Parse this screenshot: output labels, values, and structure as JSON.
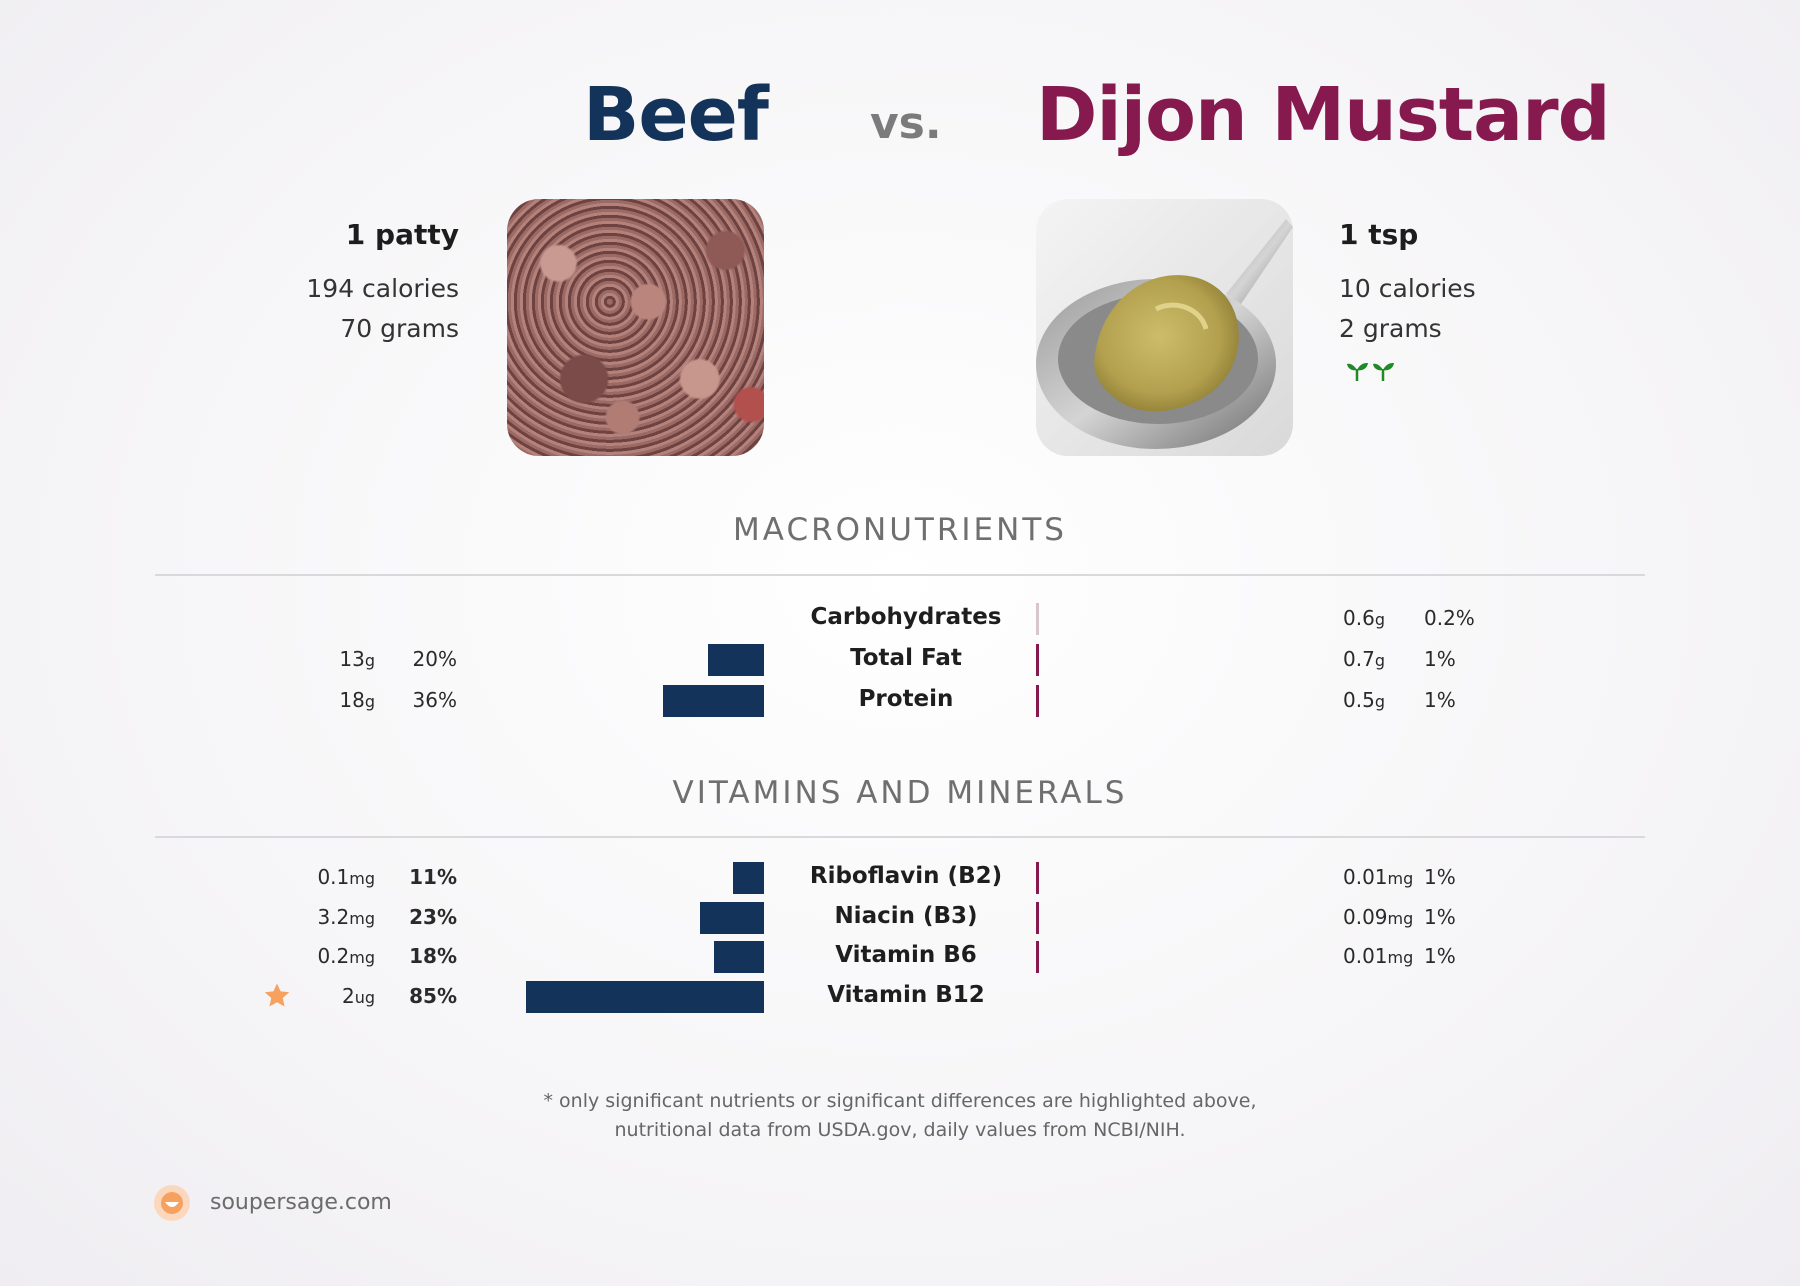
{
  "header": {
    "left_food": "Beef",
    "vs": "vs.",
    "right_food": "Dijon Mustard"
  },
  "left": {
    "serving": "1 patty",
    "calories": "194 calories",
    "grams": "70 grams"
  },
  "right": {
    "serving": "1 tsp",
    "calories": "10 calories",
    "grams": "2 grams",
    "badge_icon": "seedling-icon"
  },
  "macros": {
    "title": "MACRONUTRIENTS",
    "rows": [
      {
        "label": "Carbohydrates",
        "left_amount": "",
        "left_unit": "",
        "left_pct": "",
        "left_pct_value": 0,
        "right_amount": "0.6",
        "right_unit": "g",
        "right_pct": "0.2%",
        "right_pct_value": 0.2
      },
      {
        "label": "Total Fat",
        "left_amount": "13",
        "left_unit": "g",
        "left_pct": "20%",
        "left_pct_value": 20,
        "right_amount": "0.7",
        "right_unit": "g",
        "right_pct": "1%",
        "right_pct_value": 1
      },
      {
        "label": "Protein",
        "left_amount": "18",
        "left_unit": "g",
        "left_pct": "36%",
        "left_pct_value": 36,
        "right_amount": "0.5",
        "right_unit": "g",
        "right_pct": "1%",
        "right_pct_value": 1
      }
    ]
  },
  "vitamins": {
    "title": "VITAMINS AND MINERALS",
    "rows": [
      {
        "label": "Riboflavin (B2)",
        "left_amount": "0.1",
        "left_unit": "mg",
        "left_pct": "11%",
        "left_pct_value": 11,
        "right_amount": "0.01",
        "right_unit": "mg",
        "right_pct": "1%",
        "right_pct_value": 1
      },
      {
        "label": "Niacin (B3)",
        "left_amount": "3.2",
        "left_unit": "mg",
        "left_pct": "23%",
        "left_pct_value": 23,
        "right_amount": "0.09",
        "right_unit": "mg",
        "right_pct": "1%",
        "right_pct_value": 1
      },
      {
        "label": "Vitamin B6",
        "left_amount": "0.2",
        "left_unit": "mg",
        "left_pct": "18%",
        "left_pct_value": 18,
        "right_amount": "0.01",
        "right_unit": "mg",
        "right_pct": "1%",
        "right_pct_value": 1
      },
      {
        "label": "Vitamin B12",
        "left_amount": "2",
        "left_unit": "ug",
        "left_pct": "85%",
        "left_pct_value": 85,
        "right_amount": "",
        "right_unit": "",
        "right_pct": "",
        "right_pct_value": 0,
        "left_star": true
      }
    ]
  },
  "footnote": {
    "line1": "* only significant nutrients or significant differences are highlighted above,",
    "line2": "nutritional data from USDA.gov, daily values from NCBI/NIH."
  },
  "brand": {
    "name": "soupersage.com",
    "logo_icon": "soupersage-logo-icon"
  },
  "colors": {
    "left": "#14335a",
    "right": "#861a4e",
    "star": "#f6a15f"
  }
}
